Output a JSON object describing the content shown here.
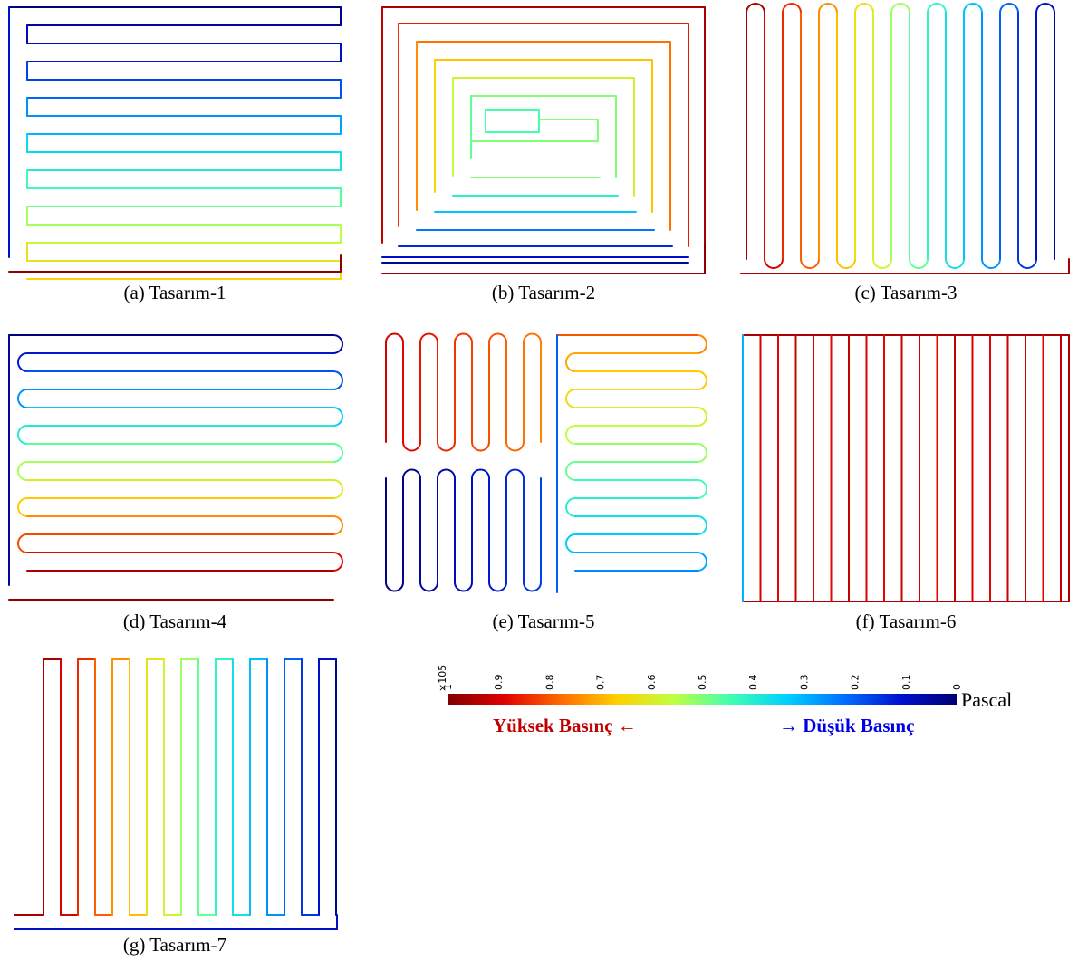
{
  "captions": {
    "p1": "(a) Tasarım-1",
    "p2": "(b) Tasarım-2",
    "p3": "(c) Tasarım-3",
    "p4": "(d) Tasarım-4",
    "p5": "(e) Tasarım-5",
    "p6": "(f) Tasarım-6",
    "p7": "(g) Tasarım-7"
  },
  "colorbar": {
    "multiplier": "×10",
    "exponent": "5",
    "ticks": [
      "1",
      "0.9",
      "0.8",
      "0.7",
      "0.6",
      "0.5",
      "0.4",
      "0.3",
      "0.2",
      "0.1",
      "0"
    ],
    "unit": "Pascal",
    "high_label": "Yüksek Basınç",
    "high_arrow": "←",
    "low_label": "Düşük Basınç",
    "low_arrow": "→",
    "colors": [
      "#800000",
      "#e00000",
      "#ff6a00",
      "#ffd000",
      "#c0ff40",
      "#40ffb0",
      "#00d0ff",
      "#0070ff",
      "#0010d0",
      "#000070"
    ]
  }
}
